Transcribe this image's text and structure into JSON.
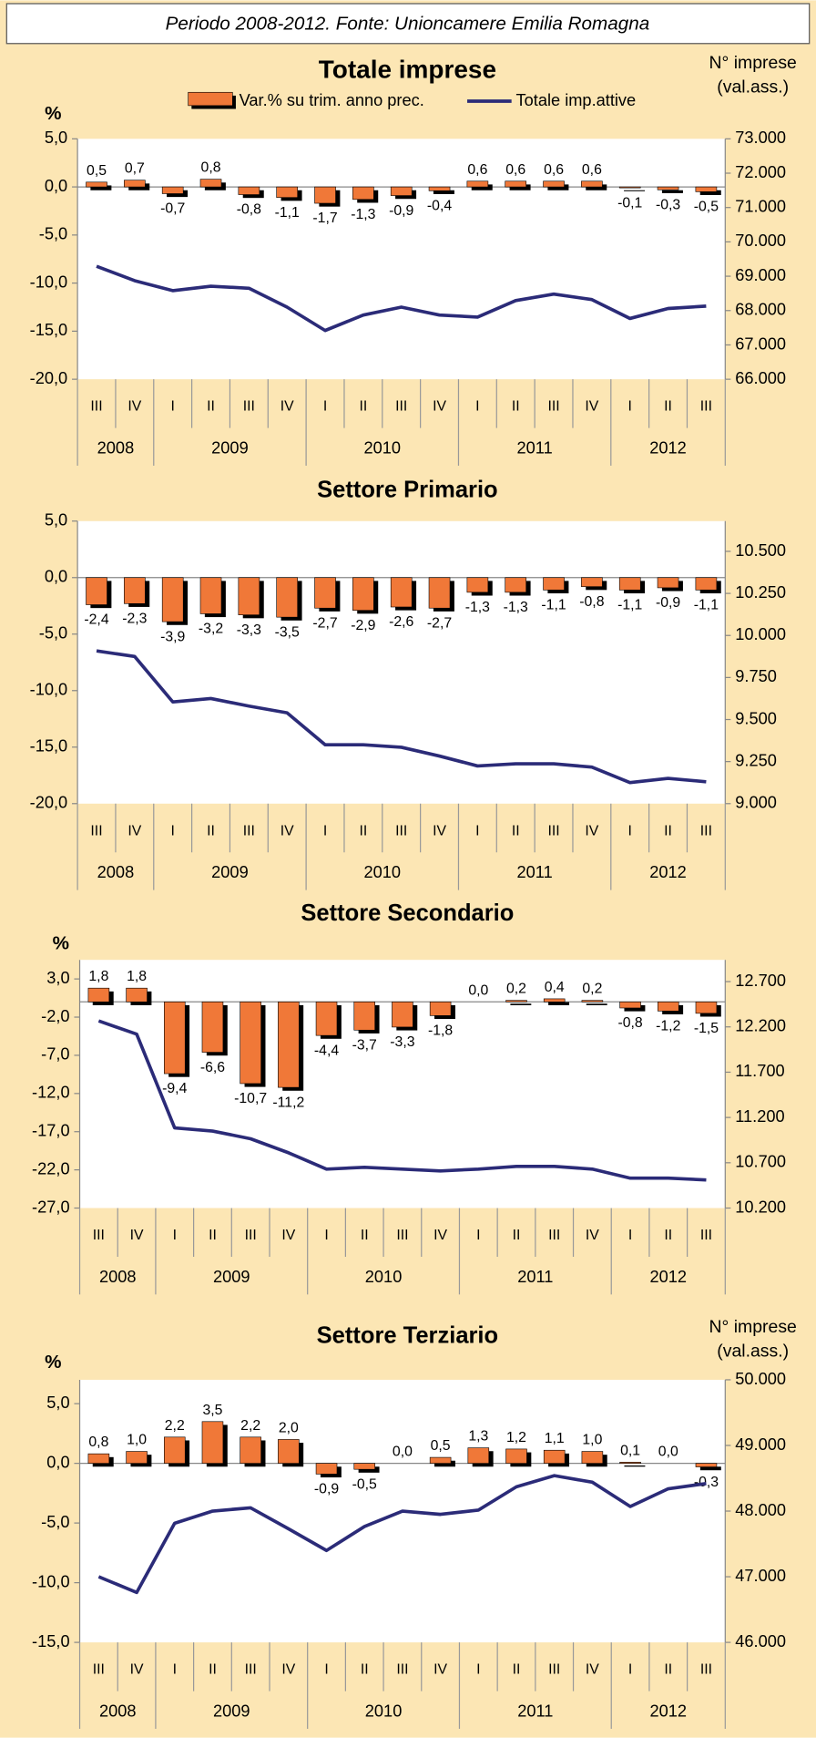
{
  "header": "Periodo 2008-2012. Fonte: Unioncamere Emilia Romagna",
  "chart_data": [
    {
      "type": "bar_line",
      "title": "Totale imprese",
      "ylabel": "%",
      "y2label": [
        "N° imprese",
        "(val.ass.)"
      ],
      "years": [
        {
          "year": "2008",
          "categories": [
            "III",
            "IV"
          ]
        },
        {
          "year": "2009",
          "categories": [
            "I",
            "II",
            "III",
            "IV"
          ]
        },
        {
          "year": "2010",
          "categories": [
            "I",
            "II",
            "III",
            "IV"
          ]
        },
        {
          "year": "2011",
          "categories": [
            "I",
            "II",
            "III",
            "IV"
          ]
        },
        {
          "year": "2012",
          "categories": [
            "I",
            "II",
            "III"
          ]
        }
      ],
      "series": [
        {
          "name": "Var.% su trim. anno prec.",
          "type": "bar",
          "color": "#f07838",
          "values": [
            0.5,
            0.7,
            -0.7,
            0.8,
            -0.8,
            -1.1,
            -1.7,
            -1.3,
            -0.9,
            -0.4,
            0.6,
            0.6,
            0.6,
            0.6,
            -0.1,
            -0.3,
            -0.5
          ],
          "value_labels": [
            "0,5",
            "0,7",
            "-0,7",
            "0,8",
            "-0,8",
            "-1,1",
            "-1,7",
            "-1,3",
            "-0,9",
            "-0,4",
            "0,6",
            "0,6",
            "0,6",
            "0,6",
            "-0,1",
            "-0,3",
            "-0,5"
          ]
        },
        {
          "name": "Totale imp.attive",
          "type": "line",
          "axis": "y2",
          "color": "#2b2b78",
          "values": [
            69290,
            68870,
            68580,
            68710,
            68650,
            68100,
            67420,
            67870,
            68100,
            67870,
            67810,
            68290,
            68480,
            68320,
            67770,
            68060,
            68130
          ]
        }
      ],
      "ylim": [
        -20,
        5
      ],
      "yticks": [
        {
          "value": -20,
          "label": "-20,0"
        },
        {
          "value": -15,
          "label": "-15,0"
        },
        {
          "value": -10,
          "label": "-10,0"
        },
        {
          "value": -5,
          "label": "-5,0"
        },
        {
          "value": 0,
          "label": "0,0"
        },
        {
          "value": 5,
          "label": "5,0"
        }
      ],
      "y2lim": [
        66000,
        73000
      ],
      "y2ticks": [
        {
          "value": 66000,
          "label": "66.000"
        },
        {
          "value": 67000,
          "label": "67.000"
        },
        {
          "value": 68000,
          "label": "68.000"
        },
        {
          "value": 69000,
          "label": "69.000"
        },
        {
          "value": 70000,
          "label": "70.000"
        },
        {
          "value": 71000,
          "label": "71.000"
        },
        {
          "value": 72000,
          "label": "72.000"
        },
        {
          "value": 73000,
          "label": "73.000"
        }
      ],
      "legend": "top"
    },
    {
      "type": "bar_line",
      "title": "Settore Primario",
      "years": [
        {
          "year": "2008",
          "categories": [
            "III",
            "IV"
          ]
        },
        {
          "year": "2009",
          "categories": [
            "I",
            "II",
            "III",
            "IV"
          ]
        },
        {
          "year": "2010",
          "categories": [
            "I",
            "II",
            "III",
            "IV"
          ]
        },
        {
          "year": "2011",
          "categories": [
            "I",
            "II",
            "III",
            "IV"
          ]
        },
        {
          "year": "2012",
          "categories": [
            "I",
            "II",
            "III"
          ]
        }
      ],
      "series": [
        {
          "type": "bar",
          "color": "#f07838",
          "values": [
            -2.4,
            -2.3,
            -3.9,
            -3.2,
            -3.3,
            -3.5,
            -2.7,
            -2.9,
            -2.6,
            -2.7,
            -1.3,
            -1.3,
            -1.1,
            -0.8,
            -1.1,
            -0.9,
            -1.1
          ],
          "value_labels": [
            "-2,4",
            "-2,3",
            "-3,9",
            "-3,2",
            "-3,3",
            "-3,5",
            "-2,7",
            "-2,9",
            "-2,6",
            "-2,7",
            "-1,3",
            "-1,3",
            "-1,1",
            "-0,8",
            "-1,1",
            "-0,9",
            "-1,1"
          ]
        },
        {
          "type": "line",
          "axis": "y2",
          "color": "#2b2b78",
          "values": [
            9908,
            9875,
            9605,
            9625,
            9580,
            9540,
            9350,
            9350,
            9335,
            9283,
            9224,
            9237,
            9237,
            9217,
            9125,
            9150,
            9130
          ]
        }
      ],
      "ylim": [
        -20,
        5
      ],
      "yticks": [
        {
          "value": -20,
          "label": "-20,0"
        },
        {
          "value": -15,
          "label": "-15,0"
        },
        {
          "value": -10,
          "label": "-10,0"
        },
        {
          "value": -5,
          "label": "-5,0"
        },
        {
          "value": 0,
          "label": "0,0"
        },
        {
          "value": 5,
          "label": "5,0"
        }
      ],
      "y2lim": [
        9000,
        10680
      ],
      "y2ticks": [
        {
          "value": 9000,
          "label": "9.000"
        },
        {
          "value": 9250,
          "label": "9.250"
        },
        {
          "value": 9500,
          "label": "9.500"
        },
        {
          "value": 9750,
          "label": "9.750"
        },
        {
          "value": 10000,
          "label": "10.000"
        },
        {
          "value": 10250,
          "label": "10.250"
        },
        {
          "value": 10500,
          "label": "10.500"
        }
      ]
    },
    {
      "type": "bar_line",
      "title": "Settore Secondario",
      "ylabel": "%",
      "years": [
        {
          "year": "2008",
          "categories": [
            "III",
            "IV"
          ]
        },
        {
          "year": "2009",
          "categories": [
            "I",
            "II",
            "III",
            "IV"
          ]
        },
        {
          "year": "2010",
          "categories": [
            "I",
            "II",
            "III",
            "IV"
          ]
        },
        {
          "year": "2011",
          "categories": [
            "I",
            "II",
            "III",
            "IV"
          ]
        },
        {
          "year": "2012",
          "categories": [
            "I",
            "II",
            "III"
          ]
        }
      ],
      "series": [
        {
          "type": "bar",
          "color": "#f07838",
          "values": [
            1.8,
            1.8,
            -9.4,
            -6.6,
            -10.7,
            -11.2,
            -4.4,
            -3.7,
            -3.3,
            -1.8,
            0.0,
            0.2,
            0.4,
            0.2,
            -0.8,
            -1.2,
            -1.5
          ],
          "value_labels": [
            "1,8",
            "1,8",
            "-9,4",
            "-6,6",
            "-10,7",
            "-11,2",
            "-4,4",
            "-3,7",
            "-3,3",
            "-1,8",
            "0,0",
            "0,2",
            "0,4",
            "0,2",
            "-0,8",
            "-1,2",
            "-1,5"
          ]
        },
        {
          "type": "line",
          "axis": "y2",
          "color": "#2b2b78",
          "values": [
            12266,
            12120,
            11085,
            11050,
            10965,
            10810,
            10630,
            10650,
            10630,
            10610,
            10630,
            10660,
            10660,
            10630,
            10530,
            10530,
            10510
          ]
        }
      ],
      "ylim": [
        -27,
        5.5
      ],
      "yticks": [
        {
          "value": -27,
          "label": "-27,0"
        },
        {
          "value": -22,
          "label": "-22,0"
        },
        {
          "value": -17,
          "label": "-17,0"
        },
        {
          "value": -12,
          "label": "-12,0"
        },
        {
          "value": -7,
          "label": "-7,0"
        },
        {
          "value": -2,
          "label": "-2,0"
        },
        {
          "value": 3,
          "label": "3,0"
        }
      ],
      "y2lim": [
        10200,
        12940
      ],
      "y2ticks": [
        {
          "value": 10200,
          "label": "10.200"
        },
        {
          "value": 10700,
          "label": "10.700"
        },
        {
          "value": 11200,
          "label": "11.200"
        },
        {
          "value": 11700,
          "label": "11.700"
        },
        {
          "value": 12200,
          "label": "12.200"
        },
        {
          "value": 12700,
          "label": "12.700"
        }
      ]
    },
    {
      "type": "bar_line",
      "title": "Settore Terziario",
      "ylabel": "%",
      "y2label": [
        "N° imprese",
        "(val.ass.)"
      ],
      "years": [
        {
          "year": "2008",
          "categories": [
            "III",
            "IV"
          ]
        },
        {
          "year": "2009",
          "categories": [
            "I",
            "II",
            "III",
            "IV"
          ]
        },
        {
          "year": "2010",
          "categories": [
            "I",
            "II",
            "III",
            "IV"
          ]
        },
        {
          "year": "2011",
          "categories": [
            "I",
            "II",
            "III",
            "IV"
          ]
        },
        {
          "year": "2012",
          "categories": [
            "I",
            "II",
            "III"
          ]
        }
      ],
      "series": [
        {
          "type": "bar",
          "color": "#f07838",
          "values": [
            0.8,
            1.0,
            2.2,
            3.5,
            2.2,
            2.0,
            -0.9,
            -0.5,
            0.0,
            0.5,
            1.3,
            1.2,
            1.1,
            1.0,
            0.1,
            0.0,
            -0.3
          ],
          "value_labels": [
            "0,8",
            "1,0",
            "2,2",
            "3,5",
            "2,2",
            "2,0",
            "-0,9",
            "-0,5",
            "0,0",
            "0,5",
            "1,3",
            "1,2",
            "1,1",
            "1,0",
            "0,1",
            "0,0",
            "-0,3"
          ]
        },
        {
          "type": "line",
          "axis": "y2",
          "color": "#2b2b78",
          "values": [
            47000,
            46760,
            47815,
            48000,
            48050,
            47730,
            47400,
            47765,
            48000,
            47950,
            48015,
            48370,
            48540,
            48440,
            48070,
            48340,
            48420
          ]
        }
      ],
      "ylim": [
        -15,
        7
      ],
      "yticks": [
        {
          "value": -15,
          "label": "-15,0"
        },
        {
          "value": -10,
          "label": "-10,0"
        },
        {
          "value": -5,
          "label": "-5,0"
        },
        {
          "value": 0,
          "label": "0,0"
        },
        {
          "value": 5,
          "label": "5,0"
        }
      ],
      "y2lim": [
        46000,
        50000
      ],
      "y2ticks": [
        {
          "value": 46000,
          "label": "46.000"
        },
        {
          "value": 47000,
          "label": "47.000"
        },
        {
          "value": 48000,
          "label": "48.000"
        },
        {
          "value": 49000,
          "label": "49.000"
        },
        {
          "value": 50000,
          "label": "50.000"
        }
      ]
    }
  ]
}
